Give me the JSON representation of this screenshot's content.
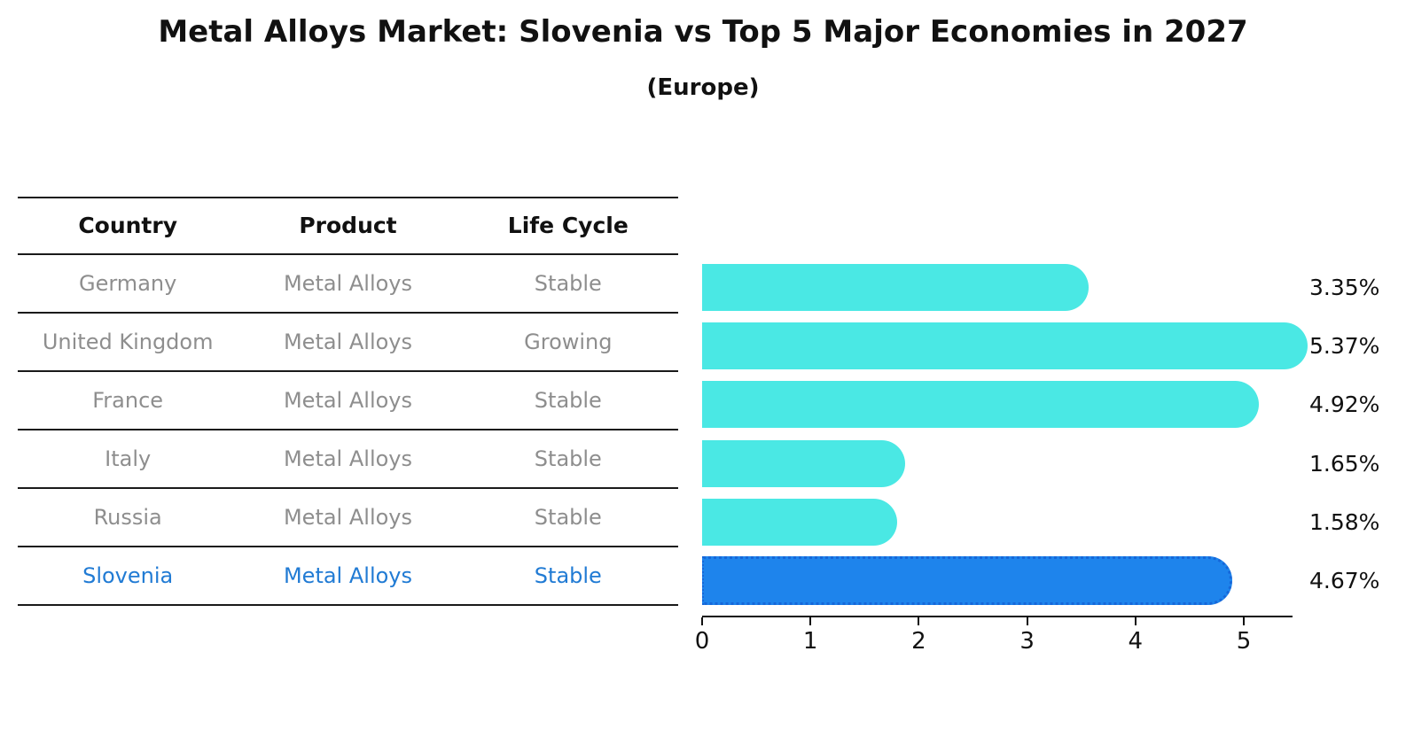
{
  "title": "Metal Alloys Market: Slovenia vs Top 5 Major Economies in 2027",
  "subtitle": "(Europe)",
  "table": {
    "headers": [
      "Country",
      "Product",
      "Life Cycle"
    ],
    "rows": [
      {
        "country": "Germany",
        "product": "Metal Alloys",
        "life_cycle": "Stable",
        "highlight": false
      },
      {
        "country": "United Kingdom",
        "product": "Metal Alloys",
        "life_cycle": "Growing",
        "highlight": false
      },
      {
        "country": "France",
        "product": "Metal Alloys",
        "life_cycle": "Stable",
        "highlight": false
      },
      {
        "country": "Italy",
        "product": "Metal Alloys",
        "life_cycle": "Stable",
        "highlight": false
      },
      {
        "country": "Russia",
        "product": "Metal Alloys",
        "life_cycle": "Stable",
        "highlight": false
      },
      {
        "country": "Slovenia",
        "product": "Metal Alloys",
        "life_cycle": "Stable",
        "highlight": true
      }
    ]
  },
  "chart_data": {
    "type": "bar",
    "orientation": "horizontal",
    "title": "Metal Alloys Market: Slovenia vs Top 5 Major Economies in 2027",
    "subtitle": "(Europe)",
    "categories": [
      "Germany",
      "United Kingdom",
      "France",
      "Italy",
      "Russia",
      "Slovenia"
    ],
    "values": [
      3.35,
      5.37,
      4.92,
      1.65,
      1.58,
      4.67
    ],
    "value_labels": [
      "3.35%",
      "5.37%",
      "4.92%",
      "1.65%",
      "1.58%",
      "4.67%"
    ],
    "unit": "%",
    "highlighted_category": "Slovenia",
    "xticks": [
      0,
      1,
      2,
      3,
      4,
      5
    ],
    "xlim": [
      0,
      5.45
    ],
    "grid": false,
    "legend": false,
    "xlabel": "",
    "ylabel": ""
  },
  "colors": {
    "bar": "#4ae8e4",
    "highlight_bar": "#1e84ec",
    "highlight_border": "#1667d9",
    "highlight_text": "#217bd4",
    "row_text": "#8e8e8e",
    "axis": "#111111"
  }
}
